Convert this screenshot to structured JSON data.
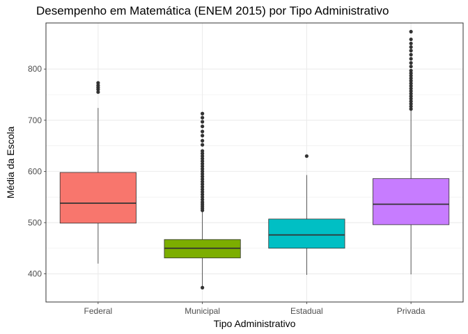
{
  "chart_data": {
    "type": "boxplot",
    "title": "Desempenho em Matemática (ENEM 2015) por Tipo Administrativo",
    "xlabel": "Tipo Administrativo",
    "ylabel": "Média da Escola",
    "ylim": [
      345,
      890
    ],
    "yticks": [
      400,
      500,
      600,
      700,
      800
    ],
    "grid": true,
    "legend": "none",
    "categories": [
      "Federal",
      "Municipal",
      "Estadual",
      "Privada"
    ],
    "boxes": [
      {
        "category": "Federal",
        "color": "#F8766D",
        "whisker_low": 420,
        "q1": 499,
        "median": 538,
        "q3": 598,
        "whisker_high": 724,
        "outliers": [
          755,
          760,
          764,
          768,
          773
        ]
      },
      {
        "category": "Municipal",
        "color": "#7CAE00",
        "whisker_low": 373,
        "q1": 431,
        "median": 450,
        "q3": 467,
        "whisker_high": 522,
        "outliers": [
          373,
          524,
          528,
          532,
          536,
          540,
          545,
          550,
          555,
          560,
          565,
          570,
          575,
          580,
          585,
          590,
          595,
          600,
          605,
          610,
          615,
          620,
          625,
          630,
          635,
          640,
          652,
          660,
          670,
          678,
          688,
          697,
          705,
          713
        ]
      },
      {
        "category": "Estadual",
        "color": "#00BFC4",
        "whisker_low": 398,
        "q1": 450,
        "median": 476,
        "q3": 507,
        "whisker_high": 593,
        "outliers": [
          630
        ]
      },
      {
        "category": "Privada",
        "color": "#C77CFF",
        "whisker_low": 399,
        "q1": 496,
        "median": 536,
        "q3": 586,
        "whisker_high": 720,
        "outliers": [
          722,
          727,
          732,
          737,
          742,
          747,
          752,
          757,
          762,
          767,
          772,
          777,
          782,
          787,
          792,
          797,
          805,
          812,
          820,
          828,
          836,
          843,
          850,
          858,
          873
        ]
      }
    ]
  }
}
